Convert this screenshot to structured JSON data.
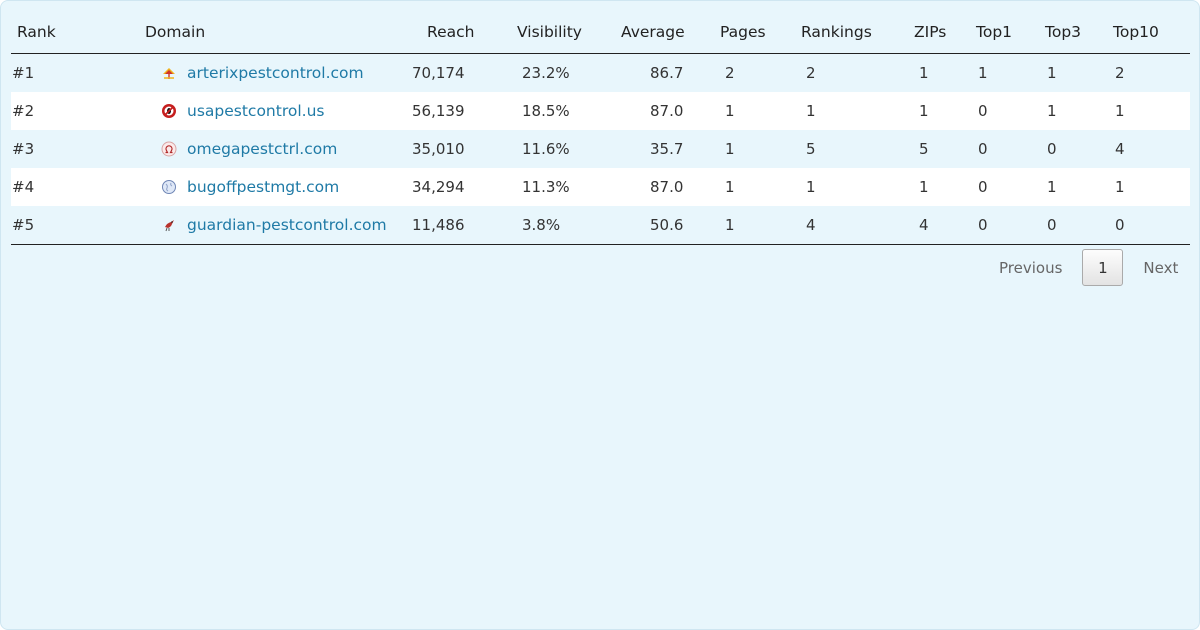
{
  "table": {
    "columns": [
      "Rank",
      "Domain",
      "Reach",
      "Visibility",
      "Average",
      "Pages",
      "Rankings",
      "ZIPs",
      "Top1",
      "Top3",
      "Top10"
    ],
    "rows": [
      {
        "rank": "#1",
        "domain": "arterixpestcontrol.com",
        "favicon": "umbrella-icon",
        "reach": "70,174",
        "visibility": "23.2%",
        "average": "86.7",
        "pages": "2",
        "rankings": "2",
        "zips": "1",
        "top1": "1",
        "top3": "1",
        "top10": "2"
      },
      {
        "rank": "#2",
        "domain": "usapestcontrol.us",
        "favicon": "no-bug-icon",
        "reach": "56,139",
        "visibility": "18.5%",
        "average": "87.0",
        "pages": "1",
        "rankings": "1",
        "zips": "1",
        "top1": "0",
        "top3": "1",
        "top10": "1"
      },
      {
        "rank": "#3",
        "domain": "omegapestctrl.com",
        "favicon": "omega-logo-icon",
        "reach": "35,010",
        "visibility": "11.6%",
        "average": "35.7",
        "pages": "1",
        "rankings": "5",
        "zips": "5",
        "top1": "0",
        "top3": "0",
        "top10": "4"
      },
      {
        "rank": "#4",
        "domain": "bugoffpestmgt.com",
        "favicon": "globe-icon",
        "reach": "34,294",
        "visibility": "11.3%",
        "average": "87.0",
        "pages": "1",
        "rankings": "1",
        "zips": "1",
        "top1": "0",
        "top3": "1",
        "top10": "1"
      },
      {
        "rank": "#5",
        "domain": "guardian-pestcontrol.com",
        "favicon": "bird-icon",
        "reach": "11,486",
        "visibility": "3.8%",
        "average": "50.6",
        "pages": "1",
        "rankings": "4",
        "zips": "4",
        "top1": "0",
        "top3": "0",
        "top10": "0"
      }
    ]
  },
  "pagination": {
    "previous_label": "Previous",
    "current_page": "1",
    "next_label": "Next"
  },
  "colors": {
    "panel_bg": "#e8f6fc",
    "link": "#1f7aa6",
    "row_alt": "#ffffff"
  }
}
